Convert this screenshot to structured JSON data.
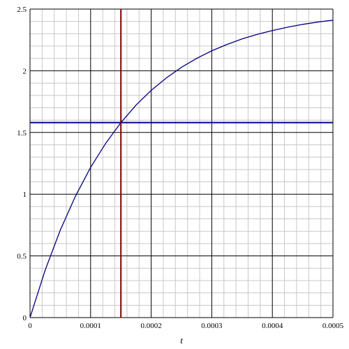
{
  "chart_data": {
    "type": "line",
    "xlabel": "t",
    "x": [
      0,
      2.5e-05,
      5e-05,
      7.5e-05,
      0.0001,
      0.000125,
      0.00015,
      0.000175,
      0.0002,
      0.000225,
      0.00025,
      0.000275,
      0.0003,
      0.000325,
      0.00035,
      0.000375,
      0.0004,
      0.000425,
      0.00045,
      0.000475,
      0.0005
    ],
    "series": [
      {
        "color": "#000080",
        "values": [
          0,
          0.384,
          0.709,
          0.984,
          1.217,
          1.413,
          1.58,
          1.722,
          1.841,
          1.942,
          2.028,
          2.1,
          2.162,
          2.213,
          2.258,
          2.295,
          2.326,
          2.353,
          2.376,
          2.395,
          2.41
        ]
      }
    ],
    "hline": {
      "value": 1.58,
      "color": "#00008b"
    },
    "vline": {
      "value": 0.00015,
      "color": "#800000"
    },
    "xlim": [
      0,
      0.0005
    ],
    "ylim": [
      0,
      2.5
    ],
    "xticks": [
      0,
      0.0001,
      0.0002,
      0.0003,
      0.0004,
      0.0005
    ],
    "yticks": [
      0,
      0.5,
      1,
      1.5,
      2,
      2.5
    ],
    "grid": true,
    "minor_divisions": 5
  }
}
